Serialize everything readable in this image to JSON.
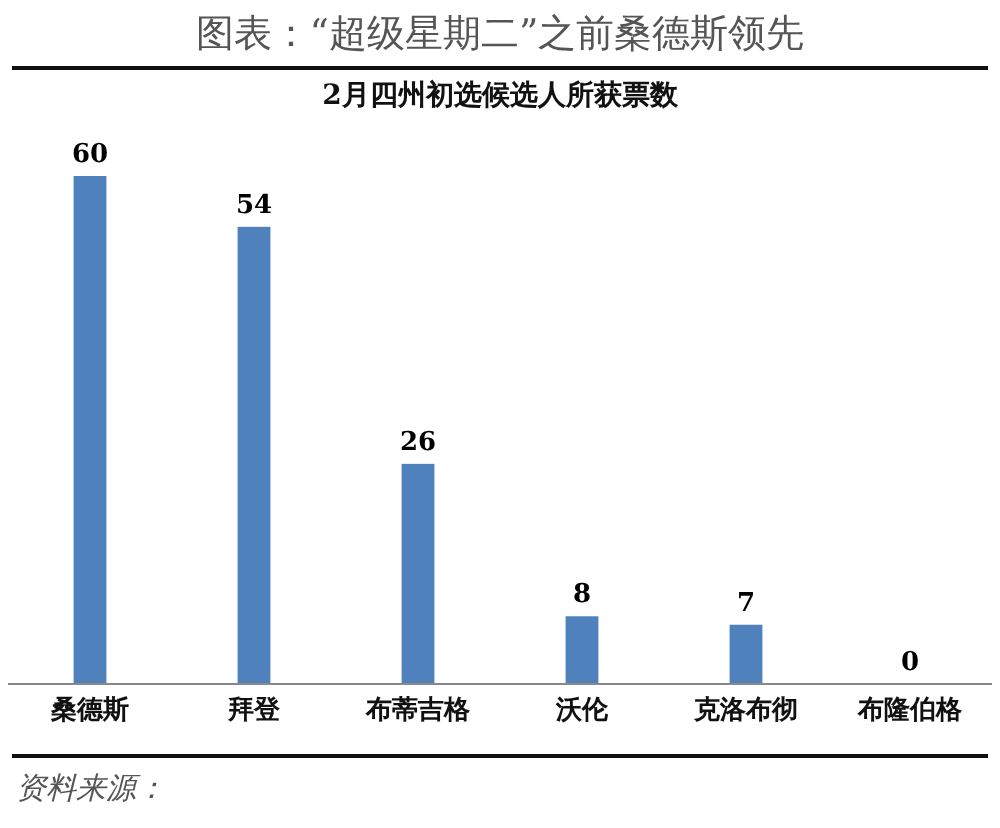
{
  "chart_data": {
    "type": "bar",
    "title": "图表：“超级星期二”之前桑德斯领先",
    "subtitle": "2月四州初选候选人所获票数",
    "categories": [
      "桑德斯",
      "拜登",
      "布蒂吉格",
      "沃伦",
      "克洛布彻",
      "布隆伯格"
    ],
    "values": [
      60,
      54,
      26,
      8,
      7,
      0
    ],
    "color": "#4f81bd",
    "data_labels": true,
    "annotations": [
      "资料来源："
    ]
  }
}
